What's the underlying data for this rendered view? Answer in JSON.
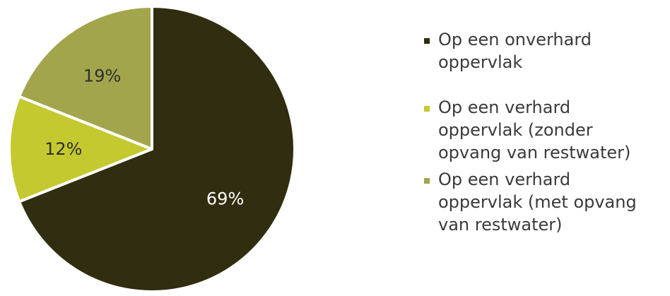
{
  "chart_data": {
    "type": "pie",
    "title": "",
    "slices": [
      {
        "label": "Op een onverhard oppervlak",
        "value": 69,
        "display": "69%",
        "color": "#302d10",
        "label_color": "#ffffff"
      },
      {
        "label": "Op een verhard oppervlak (zonder opvang van restwater)",
        "value": 12,
        "display": "12%",
        "color": "#c4c92f",
        "label_color": "#2e2e2e"
      },
      {
        "label": "Op een verhard oppervlak (met opvang van restwater)",
        "value": 19,
        "display": "19%",
        "color": "#a2a54c",
        "label_color": "#2e2e2e"
      }
    ],
    "legend_position": "right",
    "legend": [
      {
        "lines": [
          "Op een onverhard",
          "oppervlak"
        ]
      },
      {
        "lines": [
          "Op een verhard",
          "oppervlak (zonder",
          "opvang van restwater)"
        ]
      },
      {
        "lines": [
          "Op een verhard",
          "oppervlak (met opvang",
          "van restwater)"
        ]
      }
    ]
  }
}
